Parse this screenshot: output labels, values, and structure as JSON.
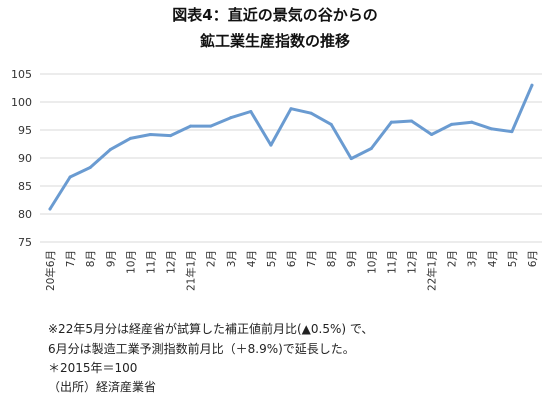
{
  "header": {
    "line1": "図表4：直近の景気の谷からの",
    "line2": "鉱工業生産指数の推移"
  },
  "notes": {
    "line1": "※22年5月分は経産省が試算した補正値前月比(▲0.5%) で、",
    "line2": "6月分は製造工業予測指数前月比（＋8.9%)で延長した。",
    "line3": "＊2015年＝100",
    "line4": "（出所）経済産業省"
  },
  "chart_data": {
    "type": "line",
    "categories": [
      "20年6月",
      "7月",
      "8月",
      "9月",
      "10月",
      "11月",
      "12月",
      "21年1月",
      "2月",
      "3月",
      "4月",
      "5月",
      "6月",
      "7月",
      "8月",
      "9月",
      "10月",
      "11月",
      "12月",
      "22年1月",
      "2月",
      "3月",
      "4月",
      "5月",
      "6月"
    ],
    "series": [
      {
        "values": [
          80.9,
          86.6,
          88.3,
          91.5,
          93.5,
          94.2,
          94.0,
          95.7,
          95.7,
          97.2,
          98.3,
          92.3,
          98.8,
          98.0,
          96.0,
          89.9,
          91.7,
          96.4,
          96.6,
          94.2,
          96.0,
          96.4,
          95.2,
          94.7,
          103.0
        ]
      }
    ],
    "yticks": [
      75,
      80,
      85,
      90,
      95,
      100,
      105
    ],
    "ylim": [
      75,
      105
    ],
    "grid": true,
    "legend": "none",
    "line_color": "#6a9bd1",
    "grid_color": "#d9d9d9"
  }
}
